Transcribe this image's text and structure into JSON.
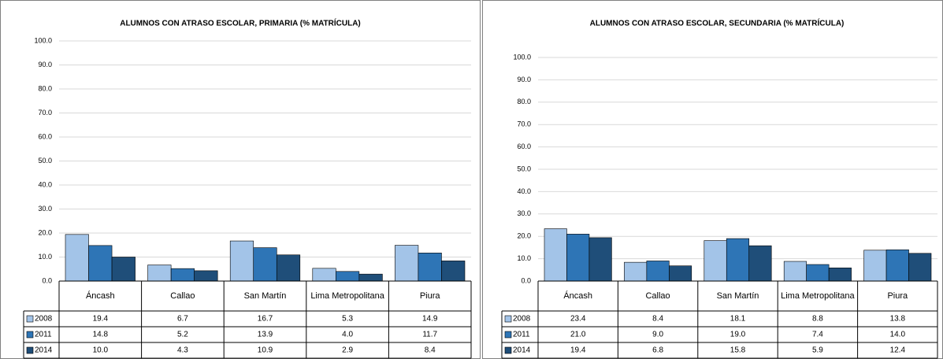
{
  "chart_data": [
    {
      "type": "bar",
      "title": "ALUMNOS CON ATRASO ESCOLAR, PRIMARIA (% MATRÍCULA)",
      "categories": [
        "Áncash",
        "Callao",
        "San Martín",
        "Lima Metropolitana",
        "Piura"
      ],
      "series": [
        {
          "name": "2008",
          "color": "#a3c4e8",
          "values": [
            19.4,
            6.7,
            16.7,
            5.3,
            14.9
          ],
          "value_labels": [
            "19.4",
            "6.7",
            "16.7",
            "5.3",
            "14.9"
          ]
        },
        {
          "name": "2011",
          "color": "#2e75b6",
          "values": [
            14.8,
            5.2,
            13.9,
            4.0,
            11.7
          ],
          "value_labels": [
            "14.8",
            "5.2",
            "13.9",
            "4.0",
            "11.7"
          ]
        },
        {
          "name": "2014",
          "color": "#1f4e79",
          "values": [
            10.0,
            4.3,
            10.9,
            2.9,
            8.4
          ],
          "value_labels": [
            "10.0",
            "4.3",
            "10.9",
            "2.9",
            "8.4"
          ]
        }
      ],
      "ylim": [
        0,
        100
      ],
      "yticks": [
        {
          "value": 0,
          "label": "0.0"
        },
        {
          "value": 10,
          "label": "10.0"
        },
        {
          "value": 20,
          "label": "20.0"
        },
        {
          "value": 30,
          "label": "30.0"
        },
        {
          "value": 40,
          "label": "40.0"
        },
        {
          "value": 50,
          "label": "50.0"
        },
        {
          "value": 60,
          "label": "60.0"
        },
        {
          "value": 70,
          "label": "70.0"
        },
        {
          "value": 80,
          "label": "80.0"
        },
        {
          "value": 90,
          "label": "90.0"
        },
        {
          "value": 100,
          "label": "100.0"
        }
      ],
      "grid": true
    },
    {
      "type": "bar",
      "title": "ALUMNOS CON ATRASO ESCOLAR, SECUNDARIA (% MATRÍCULA)",
      "categories": [
        "Áncash",
        "Callao",
        "San Martín",
        "Lima Metropolitana",
        "Piura"
      ],
      "series": [
        {
          "name": "2008",
          "color": "#a3c4e8",
          "values": [
            23.4,
            8.4,
            18.1,
            8.8,
            13.8
          ],
          "value_labels": [
            "23.4",
            "8.4",
            "18.1",
            "8.8",
            "13.8"
          ]
        },
        {
          "name": "2011",
          "color": "#2e75b6",
          "values": [
            21.0,
            9.0,
            19.0,
            7.4,
            14.0
          ],
          "value_labels": [
            "21.0",
            "9.0",
            "19.0",
            "7.4",
            "14.0"
          ]
        },
        {
          "name": "2014",
          "color": "#1f4e79",
          "values": [
            19.4,
            6.8,
            15.8,
            5.9,
            12.4
          ],
          "value_labels": [
            "19.4",
            "6.8",
            "15.8",
            "5.9",
            "12.4"
          ]
        }
      ],
      "ylim": [
        0,
        100
      ],
      "yticks": [
        {
          "value": 0,
          "label": "0.0"
        },
        {
          "value": 10,
          "label": "10.0"
        },
        {
          "value": 20,
          "label": "20.0"
        },
        {
          "value": 30,
          "label": "30.0"
        },
        {
          "value": 40,
          "label": "40.0"
        },
        {
          "value": 50,
          "label": "50.0"
        },
        {
          "value": 60,
          "label": "60.0"
        },
        {
          "value": 70,
          "label": "70.0"
        },
        {
          "value": 80,
          "label": "80.0"
        },
        {
          "value": 90,
          "label": "90.0"
        },
        {
          "value": 100,
          "label": "100.0"
        }
      ],
      "grid": true
    }
  ]
}
